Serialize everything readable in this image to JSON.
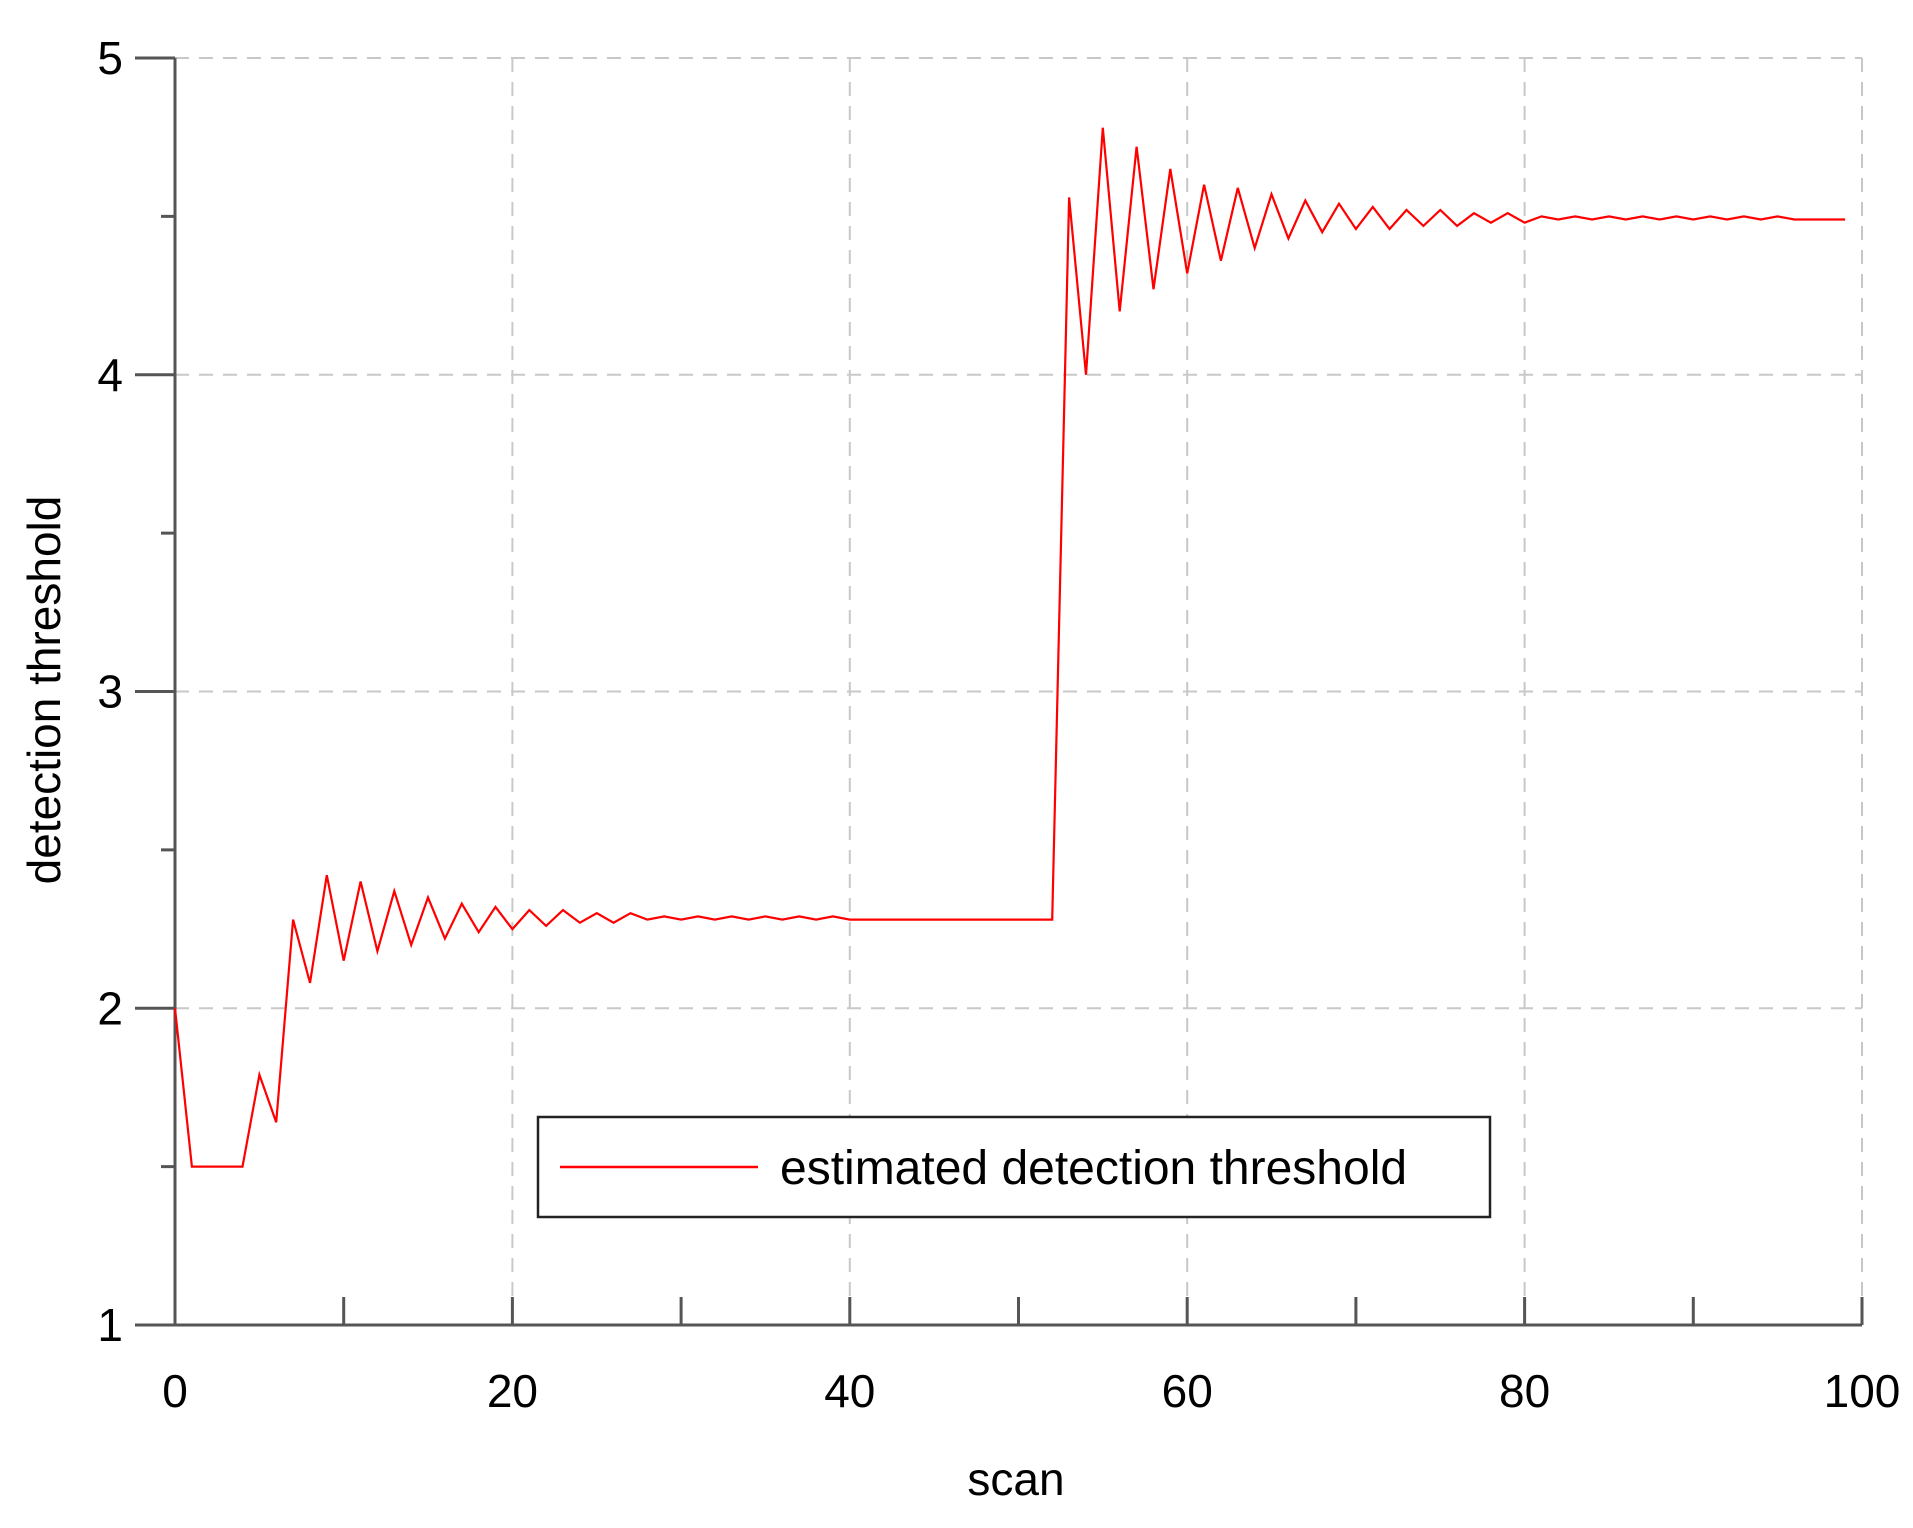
{
  "chart_data": {
    "type": "line",
    "title": "",
    "xlabel": "scan",
    "ylabel": "detection threshold",
    "xlim": [
      0,
      100
    ],
    "ylim": [
      1,
      5
    ],
    "xticks": [
      0,
      20,
      40,
      60,
      80,
      100
    ],
    "xticks_minor": [
      10,
      30,
      50,
      70,
      90
    ],
    "yticks": [
      1,
      2,
      3,
      4,
      5
    ],
    "yticks_minor": [
      1.5,
      2.5,
      3.5,
      4.5
    ],
    "grid": true,
    "legend": {
      "position": "lower-center",
      "entries": [
        "estimated detection threshold"
      ]
    },
    "series": [
      {
        "name": "estimated detection threshold",
        "color": "#ff0000",
        "x": [
          0,
          1,
          2,
          3,
          4,
          5,
          6,
          7,
          8,
          9,
          10,
          11,
          12,
          13,
          14,
          15,
          16,
          17,
          18,
          19,
          20,
          21,
          22,
          23,
          24,
          25,
          26,
          27,
          28,
          29,
          30,
          31,
          32,
          33,
          34,
          35,
          36,
          37,
          38,
          39,
          40,
          41,
          42,
          43,
          44,
          45,
          46,
          47,
          48,
          49,
          50,
          51,
          52,
          53,
          54,
          55,
          56,
          57,
          58,
          59,
          60,
          61,
          62,
          63,
          64,
          65,
          66,
          67,
          68,
          69,
          70,
          71,
          72,
          73,
          74,
          75,
          76,
          77,
          78,
          79,
          80,
          81,
          82,
          83,
          84,
          85,
          86,
          87,
          88,
          89,
          90,
          91,
          92,
          93,
          94,
          95,
          96,
          97,
          98,
          99
        ],
        "y": [
          2.0,
          1.5,
          1.5,
          1.5,
          1.5,
          1.79,
          1.64,
          2.28,
          2.08,
          2.42,
          2.15,
          2.4,
          2.18,
          2.37,
          2.2,
          2.35,
          2.22,
          2.33,
          2.24,
          2.32,
          2.25,
          2.31,
          2.26,
          2.31,
          2.27,
          2.3,
          2.27,
          2.3,
          2.28,
          2.29,
          2.28,
          2.29,
          2.28,
          2.29,
          2.28,
          2.29,
          2.28,
          2.29,
          2.28,
          2.29,
          2.28,
          2.28,
          2.28,
          2.28,
          2.28,
          2.28,
          2.28,
          2.28,
          2.28,
          2.28,
          2.28,
          2.28,
          2.28,
          4.56,
          4.0,
          4.78,
          4.2,
          4.72,
          4.27,
          4.65,
          4.32,
          4.6,
          4.36,
          4.59,
          4.4,
          4.57,
          4.43,
          4.55,
          4.45,
          4.54,
          4.46,
          4.53,
          4.46,
          4.52,
          4.47,
          4.52,
          4.47,
          4.51,
          4.48,
          4.51,
          4.48,
          4.5,
          4.49,
          4.5,
          4.49,
          4.5,
          4.49,
          4.5,
          4.49,
          4.5,
          4.49,
          4.5,
          4.49,
          4.5,
          4.49,
          4.5,
          4.49,
          4.49,
          4.49,
          4.49
        ]
      }
    ]
  }
}
